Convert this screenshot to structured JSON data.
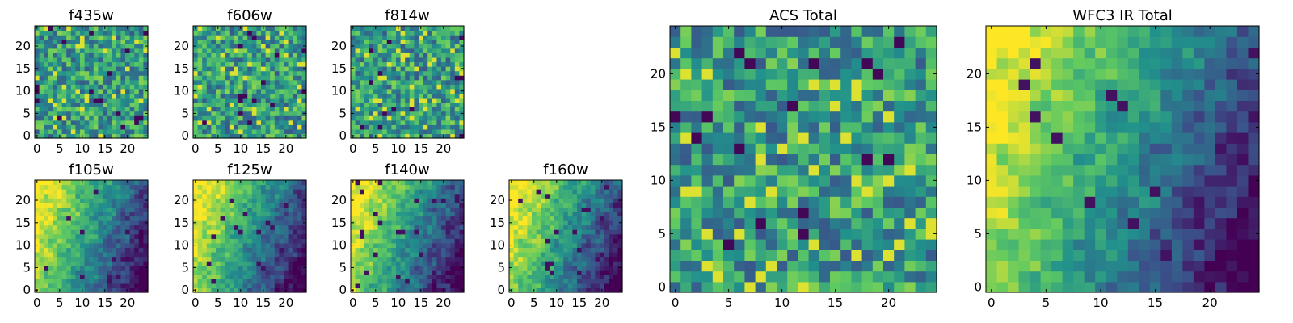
{
  "chart_data": [
    {
      "type": "heatmap",
      "title": "f435w",
      "xticks": [
        "0",
        "5",
        "10",
        "15",
        "20"
      ],
      "yticks": [
        "0",
        "5",
        "10",
        "15",
        "20"
      ],
      "grid_size": [
        25,
        25
      ],
      "colormap": "viridis",
      "pattern": "noise"
    },
    {
      "type": "heatmap",
      "title": "f606w",
      "xticks": [
        "0",
        "5",
        "10",
        "15",
        "20"
      ],
      "yticks": [
        "0",
        "5",
        "10",
        "15",
        "20"
      ],
      "grid_size": [
        25,
        25
      ],
      "colormap": "viridis",
      "pattern": "noise"
    },
    {
      "type": "heatmap",
      "title": "f814w",
      "xticks": [
        "0",
        "5",
        "10",
        "15",
        "20"
      ],
      "yticks": [
        "0",
        "5",
        "10",
        "15",
        "20"
      ],
      "grid_size": [
        25,
        25
      ],
      "colormap": "viridis",
      "pattern": "noise"
    },
    {
      "type": "heatmap",
      "title": "f105w",
      "xticks": [
        "0",
        "5",
        "10",
        "15",
        "20"
      ],
      "yticks": [
        "0",
        "5",
        "10",
        "15",
        "20"
      ],
      "grid_size": [
        25,
        25
      ],
      "colormap": "viridis",
      "pattern": "smooth"
    },
    {
      "type": "heatmap",
      "title": "f125w",
      "xticks": [
        "0",
        "5",
        "10",
        "15",
        "20"
      ],
      "yticks": [
        "0",
        "5",
        "10",
        "15",
        "20"
      ],
      "grid_size": [
        25,
        25
      ],
      "colormap": "viridis",
      "pattern": "smooth"
    },
    {
      "type": "heatmap",
      "title": "f140w",
      "xticks": [
        "0",
        "5",
        "10",
        "15",
        "20"
      ],
      "yticks": [
        "0",
        "5",
        "10",
        "15",
        "20"
      ],
      "grid_size": [
        25,
        25
      ],
      "colormap": "viridis",
      "pattern": "smooth"
    },
    {
      "type": "heatmap",
      "title": "f160w",
      "xticks": [
        "0",
        "5",
        "10",
        "15",
        "20"
      ],
      "yticks": [
        "0",
        "5",
        "10",
        "15",
        "20"
      ],
      "grid_size": [
        25,
        25
      ],
      "colormap": "viridis",
      "pattern": "smooth"
    },
    {
      "type": "heatmap",
      "title": "ACS Total",
      "xticks": [
        "0",
        "5",
        "10",
        "15",
        "20"
      ],
      "yticks": [
        "0",
        "5",
        "10",
        "15",
        "20"
      ],
      "grid_size": [
        25,
        25
      ],
      "colormap": "viridis",
      "pattern": "noise"
    },
    {
      "type": "heatmap",
      "title": "WFC3 IR Total",
      "xticks": [
        "0",
        "5",
        "10",
        "15",
        "20"
      ],
      "yticks": [
        "0",
        "5",
        "10",
        "15",
        "20"
      ],
      "grid_size": [
        25,
        25
      ],
      "colormap": "viridis",
      "pattern": "smooth"
    }
  ],
  "colors": {
    "viridis": [
      "#440154",
      "#3b528b",
      "#21918c",
      "#5ec962",
      "#fde725"
    ]
  }
}
